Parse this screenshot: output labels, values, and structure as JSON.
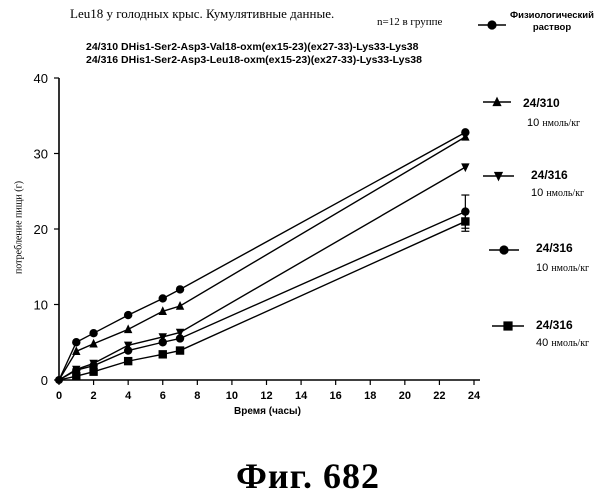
{
  "header": {
    "subtitle": "Leu18 у голодных крыс. Кумулятивные данные.",
    "n_label": "n=12 в группе",
    "compound_lines": [
      "24/310 DHis1-Ser2-Asp3-Val18-oxm(ex15-23)(ex27-33)-Lys33-Lys38",
      "24/316 DHis1-Ser2-Asp3-Leu18-oxm(ex15-23)(ex27-33)-Lys33-Lys38"
    ]
  },
  "figure_caption": "Фиг. 682",
  "chart_data": {
    "type": "line",
    "xlabel": "Время (часы)",
    "ylabel": "потребление пищи (г)",
    "xlim": [
      0,
      24
    ],
    "ylim": [
      0,
      40
    ],
    "x_ticks": [
      0,
      2,
      4,
      6,
      8,
      10,
      12,
      14,
      16,
      18,
      20,
      22,
      24
    ],
    "y_ticks": [
      0,
      10,
      20,
      30,
      40
    ],
    "grid": false,
    "legend_position": "right",
    "series": [
      {
        "name": "Физиологический раствор",
        "legend_lines": [
          "Физиологический",
          "раствор"
        ],
        "dose": "",
        "unit": "",
        "marker": "circle",
        "x": [
          0,
          1,
          2,
          4,
          6,
          7,
          23.5
        ],
        "y": [
          0,
          5,
          6.2,
          8.6,
          10.8,
          12,
          32.8
        ]
      },
      {
        "name": "24/310",
        "dose": "10",
        "unit": "нмоль/кг",
        "marker": "triangle-up",
        "x": [
          0,
          1,
          2,
          4,
          6,
          7,
          23.5
        ],
        "y": [
          0,
          3.8,
          4.8,
          6.7,
          9.1,
          9.8,
          32.2
        ]
      },
      {
        "name": "24/316",
        "dose": "10",
        "unit": "нмоль/кг",
        "marker": "triangle-down",
        "x": [
          0,
          1,
          2,
          4,
          6,
          7,
          23.5
        ],
        "y": [
          0,
          1.4,
          2.2,
          4.6,
          5.7,
          6.3,
          28.2
        ]
      },
      {
        "name": "24/316",
        "dose": "10",
        "unit": "нмоль/кг",
        "marker": "circle",
        "x": [
          0,
          1,
          2,
          4,
          6,
          7,
          23.5
        ],
        "y": [
          0,
          1.3,
          1.9,
          3.9,
          5.0,
          5.5,
          22.3
        ],
        "error": [
          0,
          0,
          0,
          0,
          0,
          0,
          2.2
        ]
      },
      {
        "name": "24/316",
        "dose": "40",
        "unit": "нмоль/кг",
        "marker": "square",
        "x": [
          0,
          1,
          2,
          4,
          6,
          7,
          23.5
        ],
        "y": [
          0,
          0.5,
          1.1,
          2.5,
          3.4,
          3.9,
          21.0
        ],
        "error": [
          0,
          0,
          0,
          0,
          0,
          0,
          1.3
        ]
      }
    ]
  }
}
